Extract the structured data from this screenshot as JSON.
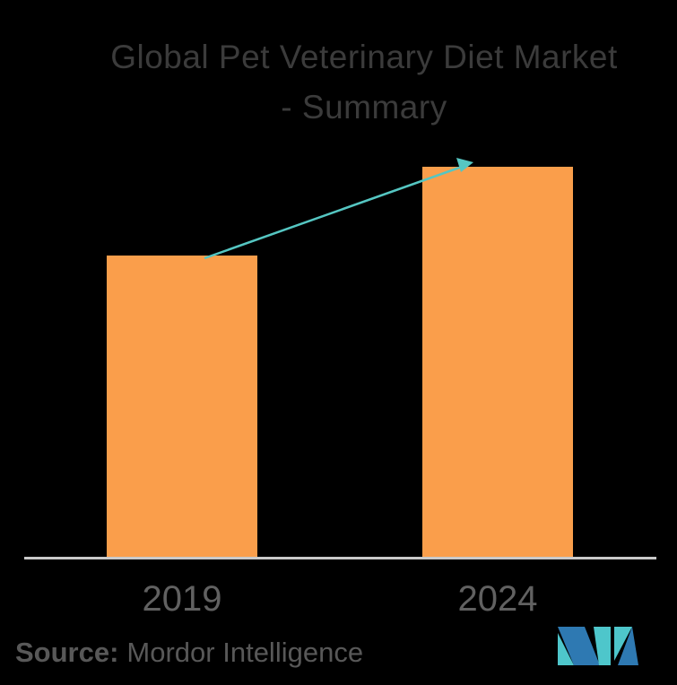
{
  "title": {
    "line1": "Global Pet Veterinary Diet Market",
    "line2": "- Summary"
  },
  "chart_data": {
    "type": "bar",
    "title": "Global Pet Veterinary Diet Market - Summary",
    "categories": [
      "2019",
      "2024"
    ],
    "values": [
      336,
      435
    ],
    "value_unit": "relative-bar-height-px (no value axis or data labels shown)",
    "xlabel": "",
    "ylabel": "",
    "ylim": [
      0,
      435
    ],
    "grid": false,
    "legend": false,
    "annotations": [
      "teal growth arrow from top of 2019 bar to top of 2024 bar"
    ]
  },
  "source": {
    "label": "Source:",
    "text": "Mordor Intelligence"
  },
  "colors": {
    "background": "#000000",
    "bar": "#FA9E4B",
    "axis": "#C9C9C9",
    "title_text": "#3B3B3B",
    "tick_text": "#616161",
    "source_text": "#585858",
    "arrow": "#55C6C2",
    "logo_teal": "#4EC6CB",
    "logo_blue": "#2E79B2"
  }
}
